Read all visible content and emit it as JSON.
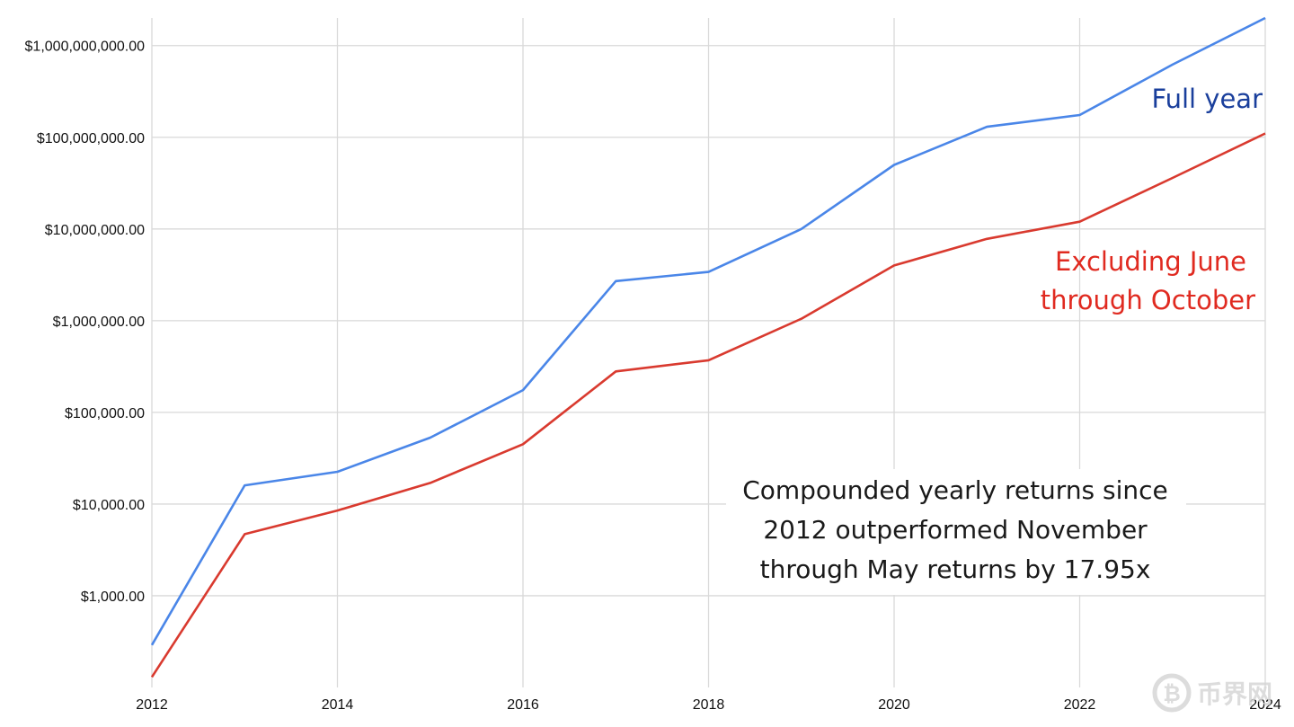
{
  "chart_data": {
    "type": "line",
    "yscale": "log",
    "ylim": [
      100,
      2000000000
    ],
    "xlim": [
      2012,
      2024
    ],
    "grid": true,
    "x_ticks": [
      "2012",
      "2014",
      "2016",
      "2018",
      "2020",
      "2022",
      "2024"
    ],
    "y_ticks": [
      {
        "value": 1000,
        "label": "$1,000.00"
      },
      {
        "value": 10000,
        "label": "$10,000.00"
      },
      {
        "value": 100000,
        "label": "$100,000.00"
      },
      {
        "value": 1000000,
        "label": "$1,000,000.00"
      },
      {
        "value": 10000000,
        "label": "$10,000,000.00"
      },
      {
        "value": 100000000,
        "label": "$100,000,000.00"
      },
      {
        "value": 1000000000,
        "label": "$1,000,000,000.00"
      }
    ],
    "x": [
      2012,
      2013,
      2014,
      2015,
      2016,
      2017,
      2018,
      2019,
      2020,
      2021,
      2022,
      2023,
      2024
    ],
    "series": [
      {
        "name": "Full year",
        "color": "#4a86e8",
        "label_color": "#1a3f9c",
        "values": [
          290,
          16000,
          22500,
          53000,
          175000,
          2700000,
          3400000,
          10000000,
          50000000,
          130000000,
          175000000,
          620000000,
          2000000000
        ]
      },
      {
        "name": "Excluding June through October",
        "label_lines": [
          "Excluding June",
          "through October"
        ],
        "color": "#d93a2f",
        "label_color": "#e02a20",
        "values": [
          130,
          4700,
          8500,
          17000,
          45000,
          280000,
          370000,
          1050000,
          4000000,
          7800000,
          12000000,
          36000000,
          110000000
        ]
      }
    ],
    "annotation_lines": [
      "Compounded yearly returns since",
      "2012 outperformed November",
      "through May returns by 17.95x"
    ]
  },
  "watermark": {
    "text": "币界网",
    "icon": "bitcoin-icon"
  }
}
